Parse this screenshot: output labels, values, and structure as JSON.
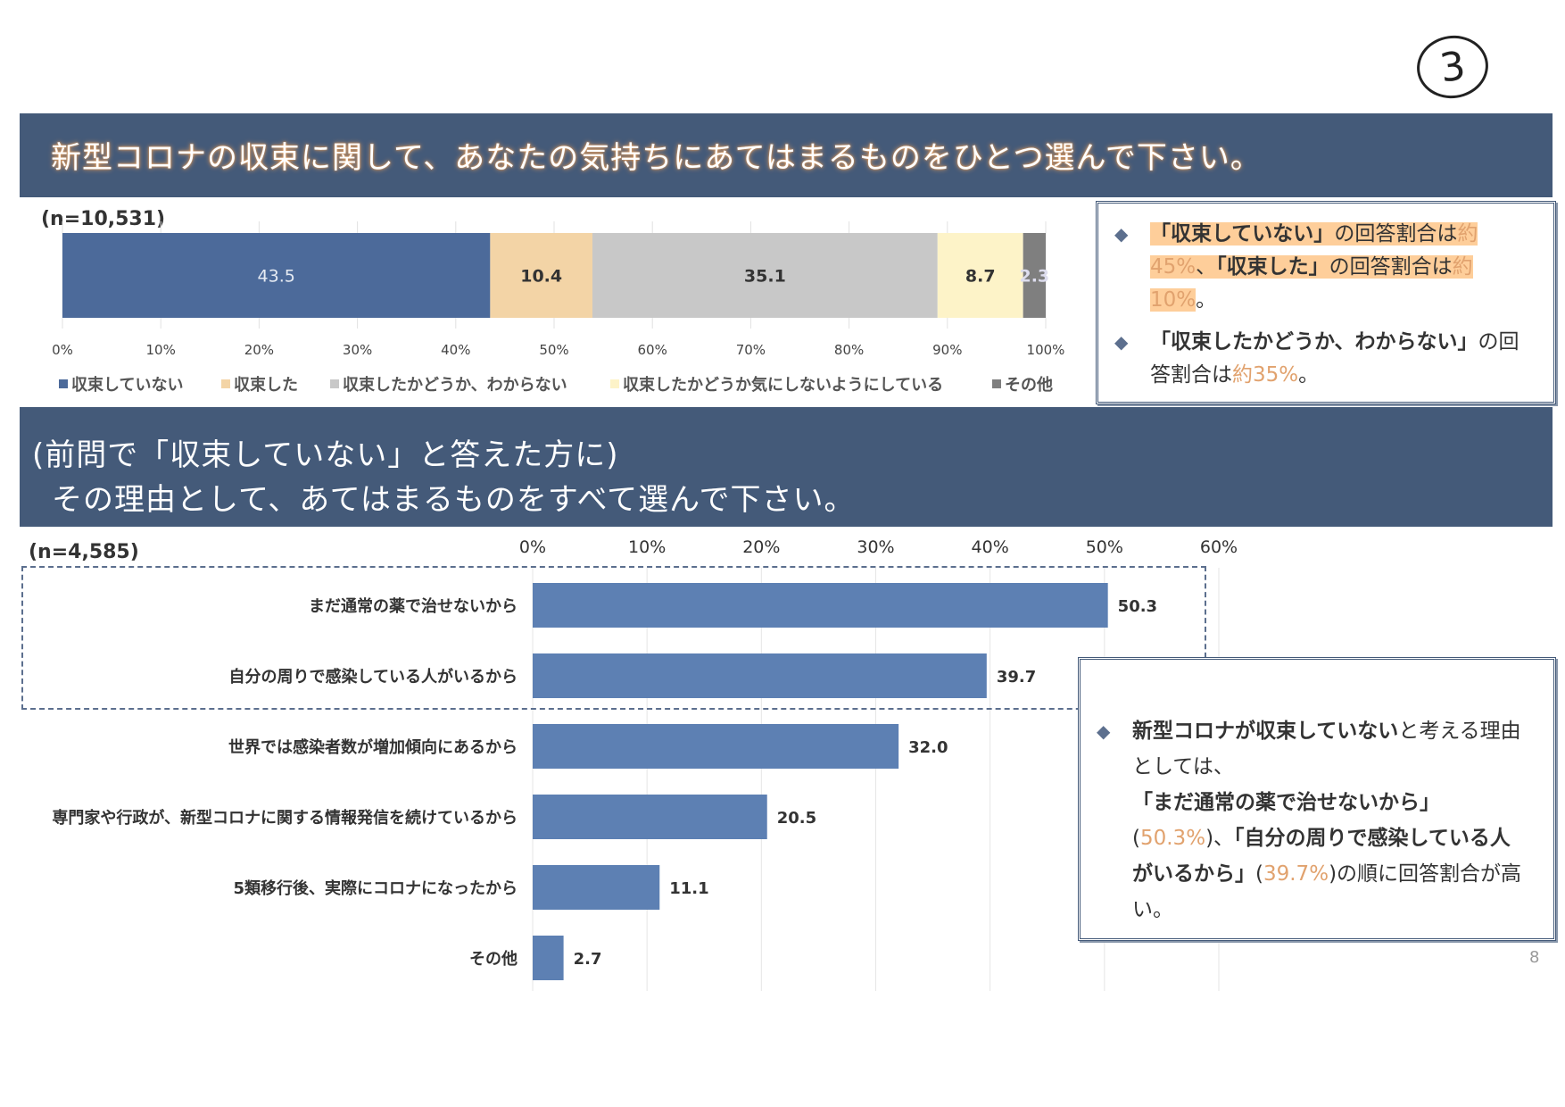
{
  "page": {
    "circle_number": "3",
    "page_number": "8"
  },
  "q1": {
    "title": "新型コロナの収束に関して、あなたの気持ちにあてはまるものをひとつ選んで下さい。",
    "n_label": "(n=10,531)"
  },
  "q2": {
    "title_line1": "(前問で「収束していない」と答えた方に)",
    "title_line2": "その理由として、あてはまるものをすべて選んで下さい。",
    "n_label": "(n=4,585)"
  },
  "callout1": {
    "p1_a": "「収束していない」",
    "p1_b": "の回答割合は",
    "p1_c": "約45%",
    "p1_d": "、",
    "p1_e": "「収束した」",
    "p1_f": "の回答割合は",
    "p1_g": "約10%",
    "p1_h": "。",
    "p2_a": "「収束したかどうか、わからない」",
    "p2_b": "の回答割合は",
    "p2_c": "約35%",
    "p2_d": "。"
  },
  "callout2": {
    "a": "新型コロナが収束していない",
    "b": "と考える理由としては、",
    "c": "「まだ通常の薬で治せないから」",
    "d": "(",
    "e": "50.3%",
    "f": ")、",
    "g": "「自分の周りで感染している人がいるから」",
    "h": "(",
    "i": "39.7%",
    "j": ")の順に回答割合が高い。"
  },
  "colors": {
    "header": "#445a79",
    "s1": "#4c6a9a",
    "s2": "#f3d4a6",
    "s3": "#c8c8c8",
    "s4": "#fdf3c8",
    "s5": "#7f7f7f",
    "bar2": "#5d80b3",
    "accent_orange": "#e1a26e"
  },
  "chart_data": [
    {
      "type": "bar",
      "orientation": "horizontal-stacked",
      "categories": [
        ""
      ],
      "series": [
        {
          "name": "収束していない",
          "values": [
            43.5
          ],
          "label": "43.5"
        },
        {
          "name": "収束した",
          "values": [
            10.4
          ],
          "label": "10.4"
        },
        {
          "name": "収束したかどうか、わからない",
          "values": [
            35.1
          ],
          "label": "35.1"
        },
        {
          "name": "収束したかどうか気にしないようにしている",
          "values": [
            8.7
          ],
          "label": "8.7"
        },
        {
          "name": "その他",
          "values": [
            2.3
          ],
          "label": "2.3"
        }
      ],
      "xlim": [
        0,
        100
      ],
      "ticks": [
        "0%",
        "10%",
        "20%",
        "30%",
        "40%",
        "50%",
        "60%",
        "70%",
        "80%",
        "90%",
        "100%"
      ],
      "legend": "bottom",
      "grid": true
    },
    {
      "type": "bar",
      "orientation": "horizontal",
      "categories": [
        "まだ通常の薬で治せないから",
        "自分の周りで感染している人がいるから",
        "世界では感染者数が増加傾向にあるから",
        "専門家や行政が、新型コロナに関する情報発信を続けているから",
        "5類移行後、実際にコロナになったから",
        "その他"
      ],
      "values": [
        50.3,
        39.7,
        32.0,
        20.5,
        11.1,
        2.7
      ],
      "labels": [
        "50.3",
        "39.7",
        "32.0",
        "20.5",
        "11.1",
        "2.7"
      ],
      "xlim": [
        0,
        60
      ],
      "ticks": [
        "0%",
        "10%",
        "20%",
        "30%",
        "40%",
        "50%",
        "60%"
      ],
      "grid": true
    }
  ]
}
